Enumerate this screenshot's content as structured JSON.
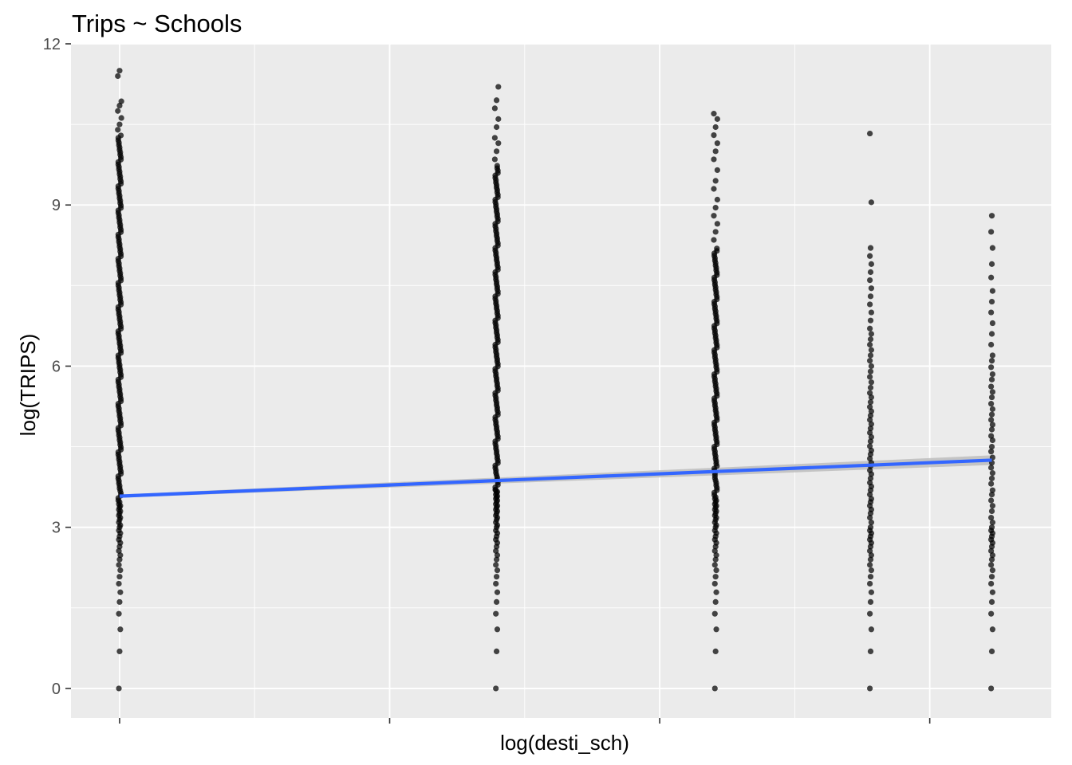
{
  "chart_data": {
    "type": "scatter",
    "title": "Trips ~ Schools",
    "xlabel": "log(desti_sch)",
    "ylabel": "log(TRIPS)",
    "ylim": [
      -0.55,
      12.0
    ],
    "yticks": [
      0,
      3,
      6,
      9,
      12
    ],
    "xlim": [
      -0.18,
      3.45
    ],
    "xticks_major": [
      0,
      1,
      2,
      3
    ],
    "xtick_labels_visible": false,
    "grid": true,
    "legend": "none",
    "colors": {
      "panel_background": "#EBEBEB",
      "grid": "#FFFFFF",
      "points": "#000000",
      "fit_line": "#3366FF",
      "confidence_band": "#BDBDBD"
    },
    "point_columns": [
      {
        "x": 0.0,
        "values": [
          0.0,
          0.69,
          1.1,
          1.39,
          1.61,
          1.79,
          1.95,
          2.08,
          2.2,
          2.3,
          2.4,
          2.48,
          2.56,
          2.64,
          2.71,
          2.77,
          2.83,
          2.89,
          2.94,
          3.0,
          3.04,
          3.09,
          3.14,
          3.18,
          3.22,
          3.26,
          3.3,
          3.33,
          3.37,
          3.4,
          3.43,
          3.47
        ],
        "dense_from": 3.5,
        "dense_to": 10.3,
        "sparse_top": [
          10.4,
          10.5,
          10.62,
          10.75,
          10.85,
          10.93,
          11.4,
          11.5
        ]
      },
      {
        "x": 1.396,
        "values": [
          0.0,
          0.69,
          1.1,
          1.39,
          1.61,
          1.79,
          1.95,
          2.08,
          2.2,
          2.3,
          2.4,
          2.48,
          2.56,
          2.64,
          2.71,
          2.77,
          2.83,
          2.89,
          2.94,
          3.0,
          3.04,
          3.09,
          3.14,
          3.18,
          3.22,
          3.26,
          3.3,
          3.33,
          3.37,
          3.4,
          3.43,
          3.47,
          3.5,
          3.53,
          3.56,
          3.58,
          3.61,
          3.64,
          3.66,
          3.69
        ],
        "dense_from": 3.7,
        "dense_to": 9.75,
        "sparse_top": [
          9.85,
          10.0,
          10.15,
          10.25,
          10.45,
          10.6,
          10.8,
          10.95,
          11.2
        ]
      },
      {
        "x": 2.207,
        "values": [
          0.0,
          0.69,
          1.1,
          1.39,
          1.61,
          1.79,
          1.95,
          2.08,
          2.2,
          2.3,
          2.4,
          2.48,
          2.56,
          2.64,
          2.71,
          2.77,
          2.83,
          2.89,
          2.94,
          3.0,
          3.04,
          3.09,
          3.14,
          3.18,
          3.22,
          3.26,
          3.3,
          3.33,
          3.37,
          3.4,
          3.43,
          3.47,
          3.5,
          3.53,
          3.56
        ],
        "dense_from": 3.6,
        "dense_to": 8.2,
        "sparse_top": [
          8.35,
          8.5,
          8.65,
          8.8,
          8.95,
          9.1,
          9.3,
          9.45,
          9.65,
          9.85,
          10.0,
          10.15,
          10.3,
          10.45,
          10.6,
          10.7
        ]
      },
      {
        "x": 2.781,
        "values": [
          0.0,
          0.69,
          1.1,
          1.39,
          1.61,
          1.79,
          1.95,
          2.08,
          2.2,
          2.3,
          2.4,
          2.48,
          2.56,
          2.64,
          2.71,
          2.77,
          2.83,
          2.89,
          2.94,
          3.0,
          3.09,
          3.18,
          3.26,
          3.33,
          3.4,
          3.47,
          3.53,
          3.61,
          3.69,
          3.76,
          3.83,
          3.91,
          3.99,
          4.06,
          4.14,
          4.2,
          4.28,
          4.36,
          4.43,
          4.51,
          4.6,
          4.68,
          4.76,
          4.84,
          4.92,
          5.0,
          5.08,
          5.16,
          5.24,
          5.33,
          5.42,
          5.5,
          5.6,
          5.7,
          5.8,
          5.9,
          6.0,
          6.1,
          6.2,
          6.3,
          6.4,
          6.5,
          6.6,
          6.7,
          6.85,
          7.0,
          7.15,
          7.3,
          7.45,
          7.6,
          7.75,
          7.9,
          8.05,
          8.2,
          9.05,
          10.33
        ]
      },
      {
        "x": 3.23,
        "values": [
          0.0,
          0.69,
          1.1,
          1.39,
          1.61,
          1.79,
          1.95,
          2.08,
          2.2,
          2.3,
          2.4,
          2.48,
          2.56,
          2.64,
          2.71,
          2.77,
          2.83,
          2.89,
          2.94,
          3.0,
          3.09,
          3.18,
          3.3,
          3.4,
          3.5,
          3.61,
          3.69,
          3.81,
          3.91,
          4.01,
          4.11,
          4.2,
          4.3,
          4.41,
          4.5,
          4.62,
          4.7,
          4.82,
          4.91,
          5.0,
          5.1,
          5.2,
          5.3,
          5.42,
          5.52,
          5.62,
          5.75,
          5.85,
          5.98,
          6.1,
          6.2,
          6.4,
          6.6,
          6.8,
          7.0,
          7.2,
          7.4,
          7.65,
          7.9,
          8.2,
          8.5,
          8.8
        ]
      }
    ],
    "fit_line": {
      "x": [
        0.0,
        3.23
      ],
      "y": [
        3.58,
        4.25
      ],
      "se_at_ends": [
        0.03,
        0.09
      ]
    }
  }
}
